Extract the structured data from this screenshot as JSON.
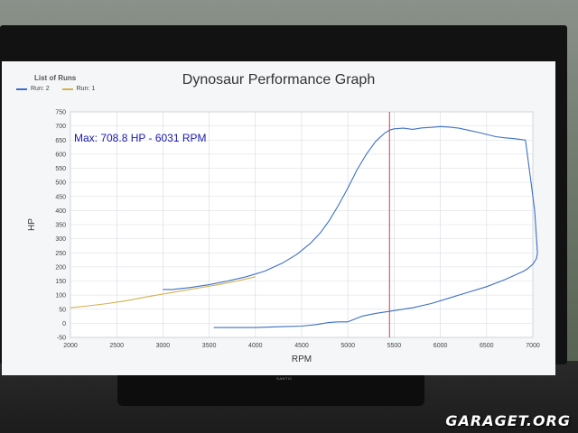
{
  "watermark": "GARAGET.ORG",
  "monitor_brand": "SANTIC",
  "colors": {
    "run2": "#3d6fc5",
    "run1": "#d4b04e",
    "marker": "#e03a3a",
    "annotation": "#1a1ab3",
    "grid": "#d6dadf"
  },
  "chart_data": {
    "type": "line",
    "title": "Dynosaur Performance Graph",
    "xlabel": "RPM",
    "ylabel": "HP",
    "xlim": [
      2000,
      7000
    ],
    "ylim": [
      -50,
      750
    ],
    "xticks": [
      "2000",
      "2500",
      "3000",
      "3500",
      "4000",
      "4500",
      "5000",
      "5500",
      "6000",
      "6500",
      "7000"
    ],
    "yticks": [
      "-50",
      "0",
      "50",
      "100",
      "150",
      "200",
      "250",
      "300",
      "350",
      "400",
      "450",
      "500",
      "550",
      "600",
      "650",
      "700",
      "750"
    ],
    "grid": true,
    "legend_title": "List of Runs",
    "legend_position": "top-left",
    "annotation": "Max: 708.8 HP - 6031 RPM",
    "marker_rpm": 5450,
    "series": [
      {
        "name": "Run: 2",
        "color": "#3d6fc5",
        "x": [
          3000,
          3100,
          3300,
          3500,
          3700,
          3900,
          4100,
          4300,
          4450,
          4600,
          4700,
          4800,
          4900,
          5000,
          5100,
          5200,
          5300,
          5400,
          5450,
          5500,
          5600,
          5700,
          5800,
          5900,
          6000,
          6100,
          6200,
          6300,
          6400,
          6500,
          6600,
          6700,
          6800,
          6920,
          6980,
          7020,
          7040,
          7050,
          7040,
          7000,
          6950,
          6900,
          6800,
          6700,
          6500,
          6300,
          6100,
          5900,
          5700,
          5500,
          5300,
          5150,
          5000,
          4900,
          4800,
          4650,
          4500,
          4300,
          4000,
          3800,
          3550
        ],
        "y": [
          120,
          120,
          127,
          137,
          150,
          165,
          185,
          215,
          245,
          285,
          320,
          365,
          420,
          480,
          545,
          600,
          645,
          675,
          685,
          690,
          692,
          688,
          693,
          695,
          698,
          696,
          692,
          685,
          678,
          670,
          662,
          658,
          655,
          650,
          500,
          400,
          300,
          250,
          230,
          210,
          195,
          185,
          170,
          155,
          130,
          110,
          90,
          70,
          55,
          45,
          35,
          25,
          5,
          5,
          3,
          -5,
          -10,
          -12,
          -15,
          -15,
          -15
        ]
      },
      {
        "name": "Run: 1",
        "color": "#d4b04e",
        "x": [
          2000,
          2200,
          2400,
          2600,
          2800,
          3000,
          3200,
          3400,
          3600,
          3800,
          4000
        ],
        "y": [
          55,
          62,
          70,
          80,
          92,
          104,
          115,
          126,
          137,
          150,
          165
        ]
      }
    ]
  }
}
